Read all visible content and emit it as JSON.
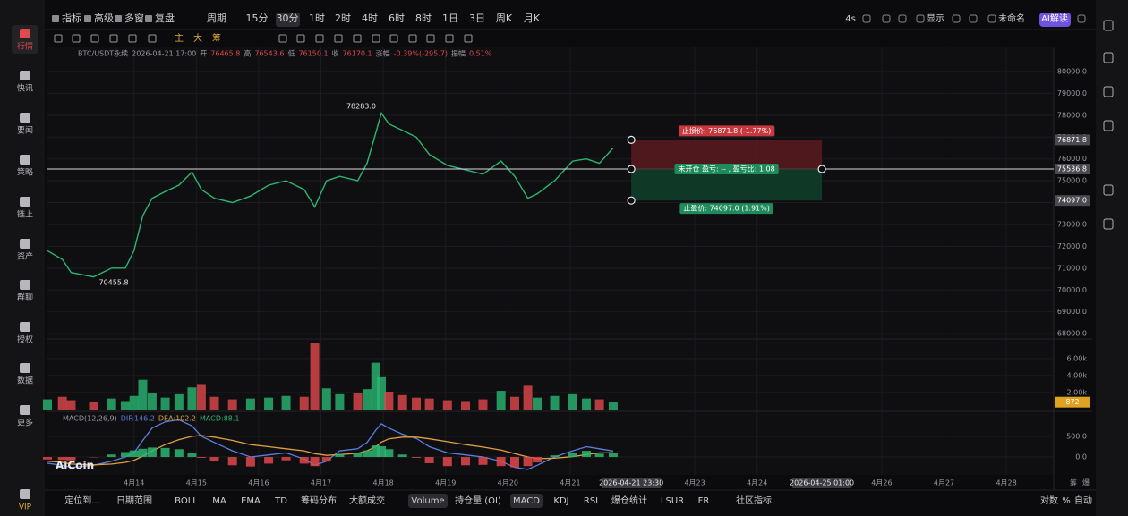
{
  "top_toolbar": {
    "left": [
      "指标",
      "高级",
      "多窗",
      "复盘",
      "周期",
      "15分",
      "30分",
      "1时",
      "2时",
      "4时",
      "6时",
      "8时",
      "1日",
      "3日",
      "周K",
      "月K"
    ],
    "right": [
      "4s",
      "显示",
      "未命名",
      "AI解读"
    ]
  },
  "sidebar": [
    "行情",
    "快讯",
    "要闻",
    "策略",
    "链上",
    "资产",
    "群聊",
    "授权",
    "数据",
    "更多",
    "VIP"
  ],
  "draw_toolbar": [
    "主",
    "大",
    "筹"
  ],
  "bottom_bar": [
    "定位到...",
    "日期范围",
    "BOLL",
    "MA",
    "EMA",
    "TD",
    "筹码分布",
    "大额成交",
    "Volume",
    "持仓量 (OI)",
    "MACD",
    "KDJ",
    "RSI",
    "爆仓统计",
    "LSUR",
    "FR",
    "社区指标",
    "对数",
    "%",
    "自动"
  ],
  "axis_tools": [
    "筹",
    "爆"
  ],
  "logo": "AiCoin",
  "chart_data": [
    {
      "type": "line",
      "symbol": "BTC/USDT永续",
      "time": "2026-04-21 17:00",
      "ohlc": [
        {
          "label": "开",
          "value": 76465.8
        },
        {
          "label": "高",
          "value": 76543.6
        },
        {
          "label": "低",
          "value": 76150.1
        },
        {
          "label": "收",
          "value": 76170.1
        },
        {
          "label": "涨幅",
          "value": "-0.39%(-295.7)"
        },
        {
          "label": "振幅",
          "value": "0.51%"
        }
      ],
      "x": [
        12.61,
        12.85,
        12.99,
        13.35,
        13.64,
        13.86,
        14.0,
        14.14,
        14.29,
        14.5,
        14.72,
        14.93,
        15.08,
        15.29,
        15.58,
        15.87,
        16.16,
        16.44,
        16.73,
        16.9,
        17.09,
        17.3,
        17.59,
        17.74,
        17.88,
        17.97,
        18.09,
        18.31,
        18.53,
        18.74,
        19.03,
        19.32,
        19.6,
        19.89,
        20.11,
        20.32,
        20.47,
        20.75,
        21.04,
        21.26,
        21.47,
        21.69
      ],
      "values": [
        71800,
        71400,
        70800,
        70600,
        71000,
        71000,
        71800,
        73400,
        74200,
        74500,
        74800,
        75400,
        74600,
        74200,
        74000,
        74300,
        74800,
        75000,
        74600,
        73800,
        75000,
        75200,
        75000,
        75800,
        77200,
        78100,
        77600,
        77300,
        77000,
        76200,
        75700,
        75500,
        75300,
        75900,
        75200,
        74200,
        74400,
        75000,
        75900,
        76000,
        75800,
        76500
      ],
      "color": "#2bb673",
      "xlim": [
        12.61,
        28.76
      ],
      "xticks": [
        {
          "value": 14,
          "label": "4月14"
        },
        {
          "value": 15,
          "label": "4月15"
        },
        {
          "value": 16,
          "label": "4月16"
        },
        {
          "value": 17,
          "label": "4月17"
        },
        {
          "value": 18,
          "label": "4月18"
        },
        {
          "value": 19,
          "label": "4月19"
        },
        {
          "value": 20,
          "label": "4月20"
        },
        {
          "value": 21,
          "label": "4月21"
        },
        {
          "value": 23,
          "label": "4月23"
        },
        {
          "value": 24,
          "label": "4月24"
        },
        {
          "value": 26,
          "label": "4月26"
        },
        {
          "value": 27,
          "label": "4月27"
        },
        {
          "value": 28,
          "label": "4月28"
        }
      ],
      "x_markers": [
        {
          "value": 21.98,
          "label": "2026-04-21 23:30"
        },
        {
          "value": 25.04,
          "label": "2026-04-25 01:00"
        }
      ],
      "ylim": [
        67800,
        80900
      ],
      "yticks": [
        {
          "value": 68000,
          "label": "68000.0"
        },
        {
          "value": 69000,
          "label": "69000.0"
        },
        {
          "value": 70000,
          "label": "70000.0"
        },
        {
          "value": 71000,
          "label": "71000.0"
        },
        {
          "value": 72000,
          "label": "72000.0"
        },
        {
          "value": 73000,
          "label": "73000.0"
        },
        {
          "value": 74000,
          "label": "74000.0"
        },
        {
          "value": 75000,
          "label": "75000.0"
        },
        {
          "value": 76000,
          "label": "76000.0"
        },
        {
          "value": 77000,
          "label": "77000.0"
        },
        {
          "value": 78000,
          "label": "78000.0"
        },
        {
          "value": 79000,
          "label": "79000.0"
        },
        {
          "value": 80000,
          "label": "80000.0"
        }
      ],
      "grid": true,
      "annotations": [
        {
          "x": 17.97,
          "value": 78283,
          "label": "78283.0"
        },
        {
          "x": 13.35,
          "value": 70455.8
        }
      ],
      "last_price": 75536.8,
      "position": {
        "stop": 76871.8,
        "target": {
          "value": 74097,
          "label": "74097.0"
        },
        "stop_label": "止损价: 76871.8 (-1.77%)",
        "status_label": "未开仓 盈亏: -- , 盈亏比: 1.08",
        "target_label": "止盈价: 74097.0 (1.91%)"
      }
    },
    {
      "type": "bar",
      "x": [
        12.61,
        12.85,
        12.99,
        13.35,
        13.64,
        13.86,
        14.0,
        14.14,
        14.29,
        14.5,
        14.72,
        14.93,
        15.08,
        15.29,
        15.58,
        15.87,
        16.16,
        16.44,
        16.73,
        16.9,
        17.09,
        17.3,
        17.59,
        17.74,
        17.88,
        17.97,
        18.09,
        18.31,
        18.53,
        18.74,
        19.03,
        19.32,
        19.6,
        19.89,
        20.11,
        20.32,
        20.47,
        20.75,
        21.04,
        21.26,
        21.47,
        21.69
      ],
      "values": [
        1200,
        1500,
        1100,
        900,
        1300,
        1000,
        1600,
        3500,
        2000,
        1400,
        1800,
        2600,
        3000,
        1500,
        1200,
        1300,
        1400,
        1600,
        1500,
        7800,
        2500,
        1800,
        1900,
        2400,
        5500,
        3800,
        2100,
        1700,
        1400,
        1300,
        1100,
        1000,
        1200,
        2200,
        1500,
        2800,
        1400,
        1600,
        1800,
        1300,
        1200,
        872
      ],
      "up_color": "#2bb673",
      "down_color": "#e0474c",
      "xlim": [
        12.61,
        28.76
      ],
      "ylim": [
        0,
        8200
      ],
      "yticks": [
        {
          "value": 2000,
          "label": "2.00k"
        },
        {
          "value": 4000,
          "label": "4.00k"
        },
        {
          "value": 6000,
          "label": "6.00k"
        }
      ]
    },
    {
      "type": "combo",
      "title": "MACD(12,26,9)",
      "x": [
        12.61,
        12.85,
        12.99,
        13.35,
        13.64,
        13.86,
        14.0,
        14.14,
        14.29,
        14.5,
        14.72,
        14.93,
        15.08,
        15.29,
        15.58,
        15.87,
        16.16,
        16.44,
        16.73,
        16.9,
        17.09,
        17.3,
        17.59,
        17.74,
        17.88,
        17.97,
        18.09,
        18.31,
        18.53,
        18.74,
        19.03,
        19.32,
        19.6,
        19.89,
        20.11,
        20.32,
        20.47,
        20.75,
        21.04,
        21.26,
        21.47,
        21.69
      ],
      "xlim": [
        12.61,
        28.76
      ],
      "ylim": [
        -410,
        1060
      ],
      "yticks": [
        {
          "value": 0,
          "label": "0.0"
        },
        {
          "value": 500,
          "label": "500.0"
        }
      ],
      "series": [
        {
          "label": "DIF:146.2",
          "type": "line",
          "color": "#5b7fe0",
          "values": [
            -150,
            -200,
            -250,
            -200,
            -100,
            0,
            100,
            400,
            700,
            850,
            900,
            750,
            500,
            350,
            150,
            0,
            50,
            100,
            -50,
            -200,
            -100,
            150,
            200,
            350,
            650,
            800,
            700,
            550,
            450,
            250,
            100,
            50,
            0,
            -100,
            -250,
            -300,
            -200,
            0,
            150,
            250,
            200,
            146.2
          ]
        },
        {
          "label": "DEA:102.2",
          "type": "line",
          "color": "#e0a040",
          "values": [
            -100,
            -130,
            -170,
            -190,
            -170,
            -130,
            -80,
            20,
            150,
            300,
            420,
            500,
            520,
            480,
            400,
            300,
            250,
            200,
            150,
            80,
            40,
            60,
            90,
            150,
            250,
            360,
            440,
            480,
            480,
            440,
            370,
            300,
            240,
            170,
            80,
            0,
            -40,
            -30,
            10,
            60,
            100,
            102.2
          ]
        },
        {
          "label": "MACD:88.1",
          "type": "bar",
          "up_color": "#2bb673",
          "down_color": "#e0474c",
          "values": [
            -60,
            -70,
            -80,
            -10,
            60,
            120,
            160,
            200,
            230,
            220,
            190,
            100,
            -20,
            -100,
            -200,
            -230,
            -160,
            -80,
            -160,
            -220,
            -110,
            70,
            90,
            160,
            280,
            260,
            190,
            60,
            -20,
            -150,
            -220,
            -200,
            -190,
            -220,
            -250,
            -220,
            -130,
            40,
            110,
            150,
            80,
            88.1
          ]
        }
      ]
    }
  ]
}
